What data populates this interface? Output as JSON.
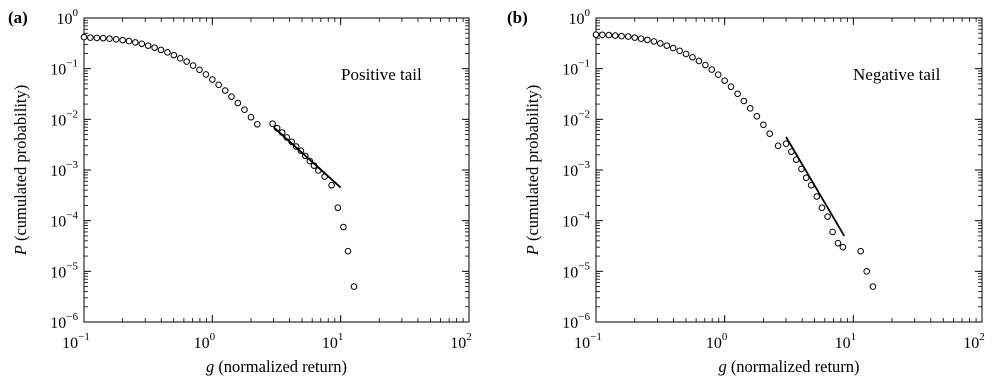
{
  "chart_data": [
    {
      "type": "scatter",
      "panel_label": "(a)",
      "annotation": "Positive tail",
      "xlabel": "g (normalized return)",
      "xlabel_var": "g",
      "xlabel_rest": " (normalized return)",
      "ylabel": "P (cumulated probability)",
      "ylabel_var": "P",
      "ylabel_rest": " (cumulated probability)",
      "xscale": "log",
      "yscale": "log",
      "xlim": [
        0.1,
        100
      ],
      "ylim": [
        1e-06,
        1
      ],
      "xticks": [
        {
          "base": "10",
          "exp": "−1"
        },
        {
          "base": "10",
          "exp": "0"
        },
        {
          "base": "10",
          "exp": "1"
        },
        {
          "base": "10",
          "exp": "2"
        }
      ],
      "yticks": [
        {
          "base": "10",
          "exp": "−6"
        },
        {
          "base": "10",
          "exp": "−5"
        },
        {
          "base": "10",
          "exp": "−4"
        },
        {
          "base": "10",
          "exp": "−3"
        },
        {
          "base": "10",
          "exp": "−2"
        },
        {
          "base": "10",
          "exp": "−1"
        },
        {
          "base": "10",
          "exp": "0"
        }
      ],
      "series": [
        {
          "marker": "open-circle",
          "points": [
            [
              0.1,
              0.42
            ],
            [
              0.112,
              0.41
            ],
            [
              0.126,
              0.405
            ],
            [
              0.141,
              0.4
            ],
            [
              0.158,
              0.39
            ],
            [
              0.178,
              0.38
            ],
            [
              0.2,
              0.365
            ],
            [
              0.224,
              0.35
            ],
            [
              0.251,
              0.33
            ],
            [
              0.282,
              0.31
            ],
            [
              0.316,
              0.285
            ],
            [
              0.355,
              0.26
            ],
            [
              0.398,
              0.235
            ],
            [
              0.447,
              0.21
            ],
            [
              0.501,
              0.185
            ],
            [
              0.562,
              0.16
            ],
            [
              0.631,
              0.138
            ],
            [
              0.708,
              0.115
            ],
            [
              0.794,
              0.095
            ],
            [
              0.891,
              0.077
            ],
            [
              1.0,
              0.061
            ],
            [
              1.12,
              0.048
            ],
            [
              1.26,
              0.037
            ],
            [
              1.41,
              0.028
            ],
            [
              1.58,
              0.021
            ],
            [
              1.78,
              0.0155
            ],
            [
              2.0,
              0.011
            ],
            [
              2.24,
              0.008
            ],
            [
              2.95,
              0.0082
            ],
            [
              3.2,
              0.0067
            ],
            [
              3.5,
              0.0055
            ],
            [
              3.8,
              0.0044
            ],
            [
              4.15,
              0.0036
            ],
            [
              4.5,
              0.0029
            ],
            [
              4.9,
              0.0024
            ],
            [
              5.3,
              0.0019
            ],
            [
              5.75,
              0.0015
            ],
            [
              6.2,
              0.00122
            ],
            [
              6.7,
              0.00098
            ],
            [
              7.5,
              0.00074
            ],
            [
              8.5,
              0.0005
            ],
            [
              9.5,
              0.00018
            ],
            [
              10.5,
              7.5e-05
            ],
            [
              11.4,
              2.5e-05
            ],
            [
              12.7,
              5e-06
            ]
          ]
        },
        {
          "marker": "line",
          "points": [
            [
              3.0,
              0.007
            ],
            [
              10.0,
              0.00045
            ]
          ]
        }
      ]
    },
    {
      "type": "scatter",
      "panel_label": "(b)",
      "annotation": "Negative tail",
      "xlabel": "g (normalized return)",
      "xlabel_var": "g",
      "xlabel_rest": " (normalized return)",
      "ylabel": "P (cumulated probability)",
      "ylabel_var": "P",
      "ylabel_rest": " (cumulated probability)",
      "xscale": "log",
      "yscale": "log",
      "xlim": [
        0.1,
        100
      ],
      "ylim": [
        1e-06,
        1
      ],
      "xticks": [
        {
          "base": "10",
          "exp": "−1"
        },
        {
          "base": "10",
          "exp": "0"
        },
        {
          "base": "10",
          "exp": "1"
        },
        {
          "base": "10",
          "exp": "2"
        }
      ],
      "yticks": [
        {
          "base": "10",
          "exp": "−6"
        },
        {
          "base": "10",
          "exp": "−5"
        },
        {
          "base": "10",
          "exp": "−4"
        },
        {
          "base": "10",
          "exp": "−3"
        },
        {
          "base": "10",
          "exp": "−2"
        },
        {
          "base": "10",
          "exp": "−1"
        },
        {
          "base": "10",
          "exp": "0"
        }
      ],
      "series": [
        {
          "marker": "open-circle",
          "points": [
            [
              0.1,
              0.47
            ],
            [
              0.112,
              0.465
            ],
            [
              0.126,
              0.46
            ],
            [
              0.141,
              0.45
            ],
            [
              0.158,
              0.44
            ],
            [
              0.178,
              0.43
            ],
            [
              0.2,
              0.41
            ],
            [
              0.224,
              0.39
            ],
            [
              0.251,
              0.37
            ],
            [
              0.282,
              0.345
            ],
            [
              0.316,
              0.315
            ],
            [
              0.355,
              0.285
            ],
            [
              0.398,
              0.255
            ],
            [
              0.447,
              0.225
            ],
            [
              0.501,
              0.195
            ],
            [
              0.562,
              0.168
            ],
            [
              0.631,
              0.142
            ],
            [
              0.708,
              0.118
            ],
            [
              0.794,
              0.096
            ],
            [
              0.891,
              0.076
            ],
            [
              1.0,
              0.058
            ],
            [
              1.12,
              0.044
            ],
            [
              1.26,
              0.032
            ],
            [
              1.41,
              0.023
            ],
            [
              1.58,
              0.0165
            ],
            [
              1.78,
              0.0115
            ],
            [
              2.0,
              0.0078
            ],
            [
              2.24,
              0.0052
            ],
            [
              2.6,
              0.003
            ],
            [
              3.0,
              0.0033
            ],
            [
              3.3,
              0.0023
            ],
            [
              3.6,
              0.0016
            ],
            [
              3.95,
              0.00105
            ],
            [
              4.3,
              0.0007
            ],
            [
              4.7,
              0.0005
            ],
            [
              5.2,
              0.0003
            ],
            [
              5.7,
              0.00018
            ],
            [
              6.3,
              0.00012
            ],
            [
              6.9,
              6e-05
            ],
            [
              7.6,
              3.6e-05
            ],
            [
              8.3,
              3e-05
            ],
            [
              11.4,
              2.5e-05
            ],
            [
              12.7,
              1e-05
            ],
            [
              14.2,
              5e-06
            ]
          ]
        },
        {
          "marker": "line",
          "points": [
            [
              3.0,
              0.0045
            ],
            [
              8.5,
              5e-05
            ]
          ]
        }
      ]
    }
  ]
}
